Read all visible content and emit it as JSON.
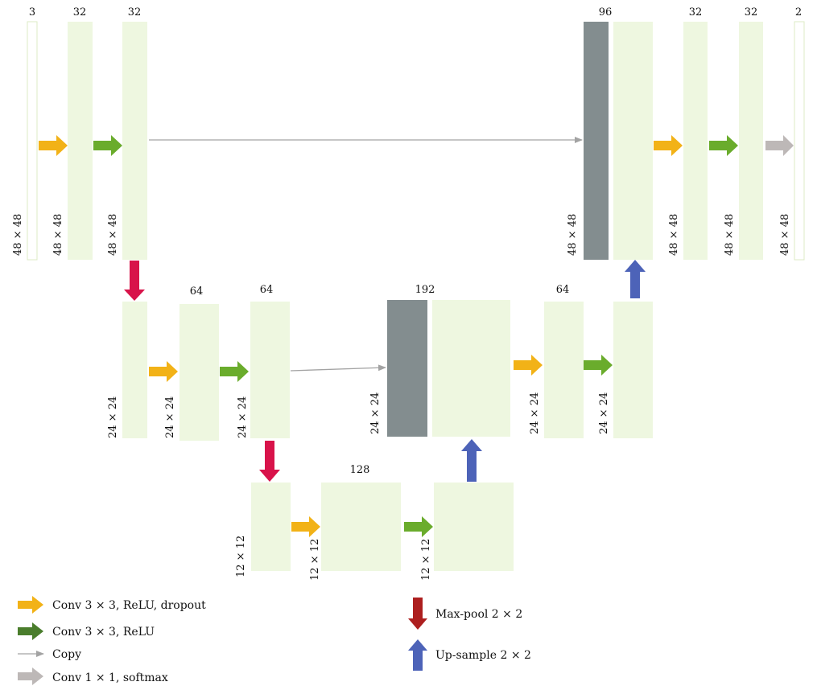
{
  "colors": {
    "feature_map_fill": "#eef7e0",
    "feature_map_stroke": "#dcebc6",
    "concat_block": "#838d8f",
    "conv_dropout_arrow": "#f2b217",
    "conv_relu_arrow": "#6aac2c",
    "conv_relu_legend_arrow": "#4a7d2c",
    "copy_arrow": "#a3a3a3",
    "softmax_arrow": "#bdb8b7",
    "maxpool_arrow": "#d8134a",
    "maxpool_legend_arrow": "#ad1f1f",
    "upsample_arrow": "#4d63b8"
  },
  "diagram": {
    "blocks": [
      {
        "id": "in",
        "channels": "3",
        "size": "48 × 48",
        "thin": true
      },
      {
        "id": "e1a",
        "channels": "32",
        "size": "48 × 48"
      },
      {
        "id": "e1b",
        "channels": "32",
        "size": "48 × 48"
      },
      {
        "id": "e2a",
        "channels": "",
        "size": "24 × 24"
      },
      {
        "id": "e2b",
        "channels": "64",
        "size": "24 × 24"
      },
      {
        "id": "e2c",
        "channels": "64",
        "size": "24 × 24"
      },
      {
        "id": "b1",
        "channels": "",
        "size": "12 × 12"
      },
      {
        "id": "b2",
        "channels": "128",
        "size": "12 × 12"
      },
      {
        "id": "b3",
        "channels": "",
        "size": "12 × 12"
      },
      {
        "id": "d2cat",
        "channels": "192",
        "size": "24 × 24",
        "concat": true
      },
      {
        "id": "d2b",
        "channels": "64",
        "size": "24 × 24"
      },
      {
        "id": "d2c",
        "channels": "",
        "size": "24 × 24"
      },
      {
        "id": "d1cat",
        "channels": "96",
        "size": "48 × 48",
        "concat": true
      },
      {
        "id": "d1b",
        "channels": "32",
        "size": "48 × 48"
      },
      {
        "id": "d1c",
        "channels": "32",
        "size": "48 × 48"
      },
      {
        "id": "out",
        "channels": "2",
        "size": "48 × 48",
        "thin": true
      }
    ]
  },
  "legend": {
    "conv_dropout": "Conv 3 × 3, ReLU, dropout",
    "conv_relu": "Conv 3 × 3, ReLU",
    "copy": "Copy",
    "conv_softmax": "Conv 1 × 1, softmax",
    "maxpool": "Max-pool 2 × 2",
    "upsample": "Up-sample 2 × 2"
  }
}
